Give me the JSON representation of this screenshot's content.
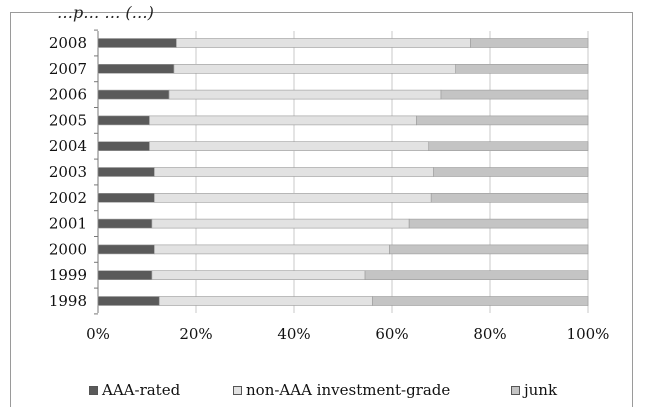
{
  "caption": "…p… … (…)",
  "chart_data": {
    "type": "bar",
    "orientation": "horizontal",
    "stacked": true,
    "categories": [
      "2008",
      "2007",
      "2006",
      "2005",
      "2004",
      "2003",
      "2002",
      "2001",
      "2000",
      "1999",
      "1998"
    ],
    "series": [
      {
        "name": "AAA-rated",
        "color": "#5a5a5a",
        "values": [
          16,
          15.5,
          14.5,
          10.5,
          10.5,
          11.5,
          11.5,
          11,
          11.5,
          11,
          12.5
        ]
      },
      {
        "name": "non-AAA investment-grade",
        "color": "#e2e2e2",
        "values": [
          60,
          57.5,
          55.5,
          54.5,
          57,
          57,
          56.5,
          52.5,
          48,
          43.5,
          43.5
        ]
      },
      {
        "name": "junk",
        "color": "#c4c4c4",
        "values": [
          24,
          27,
          30,
          35,
          32.5,
          31.5,
          32,
          36.5,
          40.5,
          45.5,
          44
        ]
      }
    ],
    "xlim": [
      0,
      100
    ],
    "xticks": [
      "0%",
      "20%",
      "40%",
      "60%",
      "80%",
      "100%"
    ],
    "grid": true,
    "legend_position": "bottom"
  }
}
